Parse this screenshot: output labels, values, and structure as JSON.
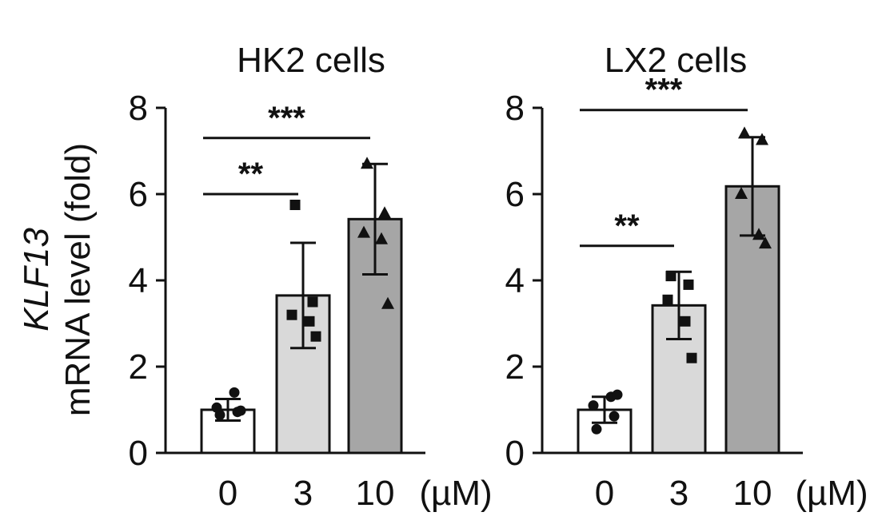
{
  "y_axis_label_italic": "KLF13",
  "y_axis_label": "mRNA level (fold)",
  "unit_label": "(µM)",
  "chart_data": [
    {
      "type": "bar",
      "title": "HK2 cells",
      "categories": [
        "0",
        "3",
        "10"
      ],
      "values": [
        1.0,
        3.65,
        5.42
      ],
      "error": [
        0.25,
        1.22,
        1.28
      ],
      "bar_colors": [
        "#ffffff",
        "#d9d9d9",
        "#a6a6a6"
      ],
      "points": [
        [
          0.88,
          0.95,
          1.05,
          1.4,
          0.98
        ],
        [
          5.75,
          3.5,
          3.2,
          3.05,
          2.7
        ],
        [
          6.7,
          5.55,
          5.1,
          4.95,
          3.45
        ]
      ],
      "markers": [
        "circle",
        "square",
        "triangle"
      ],
      "ylim": [
        0,
        8
      ],
      "yticks": [
        "0",
        "2",
        "4",
        "6",
        "8"
      ],
      "significance": [
        {
          "from": 0,
          "to": 1,
          "label": "**",
          "y": 6.0
        },
        {
          "from": 0,
          "to": 2,
          "label": "***",
          "y": 7.3
        }
      ]
    },
    {
      "type": "bar",
      "title": "LX2 cells",
      "categories": [
        "0",
        "3",
        "10"
      ],
      "values": [
        1.0,
        3.42,
        6.18
      ],
      "error": [
        0.3,
        0.78,
        1.14
      ],
      "bar_colors": [
        "#ffffff",
        "#d9d9d9",
        "#a6a6a6"
      ],
      "points": [
        [
          0.55,
          0.85,
          1.1,
          1.3,
          1.35
        ],
        [
          4.1,
          3.9,
          3.55,
          3.05,
          2.2
        ],
        [
          7.4,
          7.25,
          6.0,
          5.05,
          4.85
        ]
      ],
      "markers": [
        "circle",
        "square",
        "triangle"
      ],
      "ylim": [
        0,
        8
      ],
      "yticks": [
        "0",
        "2",
        "4",
        "6",
        "8"
      ],
      "significance": [
        {
          "from": 0,
          "to": 1,
          "label": "**",
          "y": 4.8
        },
        {
          "from": 0,
          "to": 2,
          "label": "***",
          "y": 7.95
        }
      ]
    }
  ]
}
